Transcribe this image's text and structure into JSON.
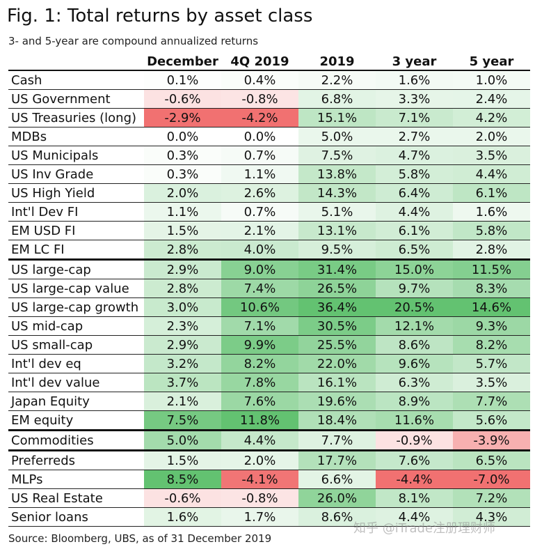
{
  "header": {
    "title": "Fig. 1: Total returns by asset class",
    "subtitle": "3- and 5-year are compound annualized returns"
  },
  "table": {
    "columns": [
      "",
      "December",
      "4Q 2019",
      "2019",
      "3 year",
      "5 year"
    ],
    "rows": [
      {
        "name": "Cash",
        "values": [
          "0.1%",
          "0.4%",
          "2.2%",
          "1.6%",
          "1.0%"
        ]
      },
      {
        "name": "US Government",
        "values": [
          "-0.6%",
          "-0.8%",
          "6.8%",
          "3.3%",
          "2.4%"
        ]
      },
      {
        "name": "US Treasuries (long)",
        "values": [
          "-2.9%",
          "-4.2%",
          "15.1%",
          "7.1%",
          "4.2%"
        ]
      },
      {
        "name": "MDBs",
        "values": [
          "0.0%",
          "0.0%",
          "5.0%",
          "2.7%",
          "2.0%"
        ]
      },
      {
        "name": "US Municipals",
        "values": [
          "0.3%",
          "0.7%",
          "7.5%",
          "4.7%",
          "3.5%"
        ]
      },
      {
        "name": "US Inv Grade",
        "values": [
          "0.3%",
          "1.1%",
          "13.8%",
          "5.8%",
          "4.4%"
        ]
      },
      {
        "name": "US High Yield",
        "values": [
          "2.0%",
          "2.6%",
          "14.3%",
          "6.4%",
          "6.1%"
        ]
      },
      {
        "name": "Int'l Dev FI",
        "values": [
          "1.1%",
          "0.7%",
          "5.1%",
          "4.4%",
          "1.6%"
        ]
      },
      {
        "name": "EM USD FI",
        "values": [
          "1.5%",
          "2.1%",
          "13.1%",
          "6.1%",
          "5.8%"
        ]
      },
      {
        "name": "EM LC FI",
        "values": [
          "2.8%",
          "4.0%",
          "9.5%",
          "6.5%",
          "2.8%"
        ]
      },
      {
        "name": "US large-cap",
        "values": [
          "2.9%",
          "9.0%",
          "31.4%",
          "15.0%",
          "11.5%"
        ]
      },
      {
        "name": "US large-cap value",
        "values": [
          "2.8%",
          "7.4%",
          "26.5%",
          "9.7%",
          "8.3%"
        ]
      },
      {
        "name": "US large-cap growth",
        "values": [
          "3.0%",
          "10.6%",
          "36.4%",
          "20.5%",
          "14.6%"
        ]
      },
      {
        "name": "US mid-cap",
        "values": [
          "2.3%",
          "7.1%",
          "30.5%",
          "12.1%",
          "9.3%"
        ]
      },
      {
        "name": "US small-cap",
        "values": [
          "2.9%",
          "9.9%",
          "25.5%",
          "8.6%",
          "8.2%"
        ]
      },
      {
        "name": "Int'l dev eq",
        "values": [
          "3.2%",
          "8.2%",
          "22.0%",
          "9.6%",
          "5.7%"
        ]
      },
      {
        "name": "Int'l dev value",
        "values": [
          "3.7%",
          "7.8%",
          "16.1%",
          "6.3%",
          "3.5%"
        ]
      },
      {
        "name": "Japan Equity",
        "values": [
          "2.1%",
          "7.6%",
          "19.6%",
          "8.9%",
          "7.7%"
        ]
      },
      {
        "name": "EM equity",
        "values": [
          "7.5%",
          "11.8%",
          "18.4%",
          "11.6%",
          "5.6%"
        ]
      },
      {
        "name": "Commodities",
        "values": [
          "5.0%",
          "4.4%",
          "7.7%",
          "-0.9%",
          "-3.9%"
        ]
      },
      {
        "name": "Preferreds",
        "values": [
          "1.5%",
          "2.0%",
          "17.7%",
          "7.6%",
          "6.5%"
        ]
      },
      {
        "name": "MLPs",
        "values": [
          "8.5%",
          "-4.1%",
          "6.6%",
          "-4.4%",
          "-7.0%"
        ]
      },
      {
        "name": "US Real Estate",
        "values": [
          "-0.6%",
          "-0.8%",
          "26.0%",
          "8.1%",
          "7.2%"
        ]
      },
      {
        "name": "Senior loans",
        "values": [
          "1.6%",
          "1.7%",
          "8.6%",
          "4.4%",
          "4.3%"
        ]
      }
    ],
    "group_breaks_before": [
      10,
      19,
      20
    ]
  },
  "footer": {
    "source": "Source: Bloomberg, UBS, as of 31 December 2019",
    "watermark": "知乎 @iTrade注册理财师"
  },
  "colors": {
    "positive_strong": "#5bbf6a",
    "negative_strong": "#f06a6a",
    "neutral": "#ffffff"
  }
}
